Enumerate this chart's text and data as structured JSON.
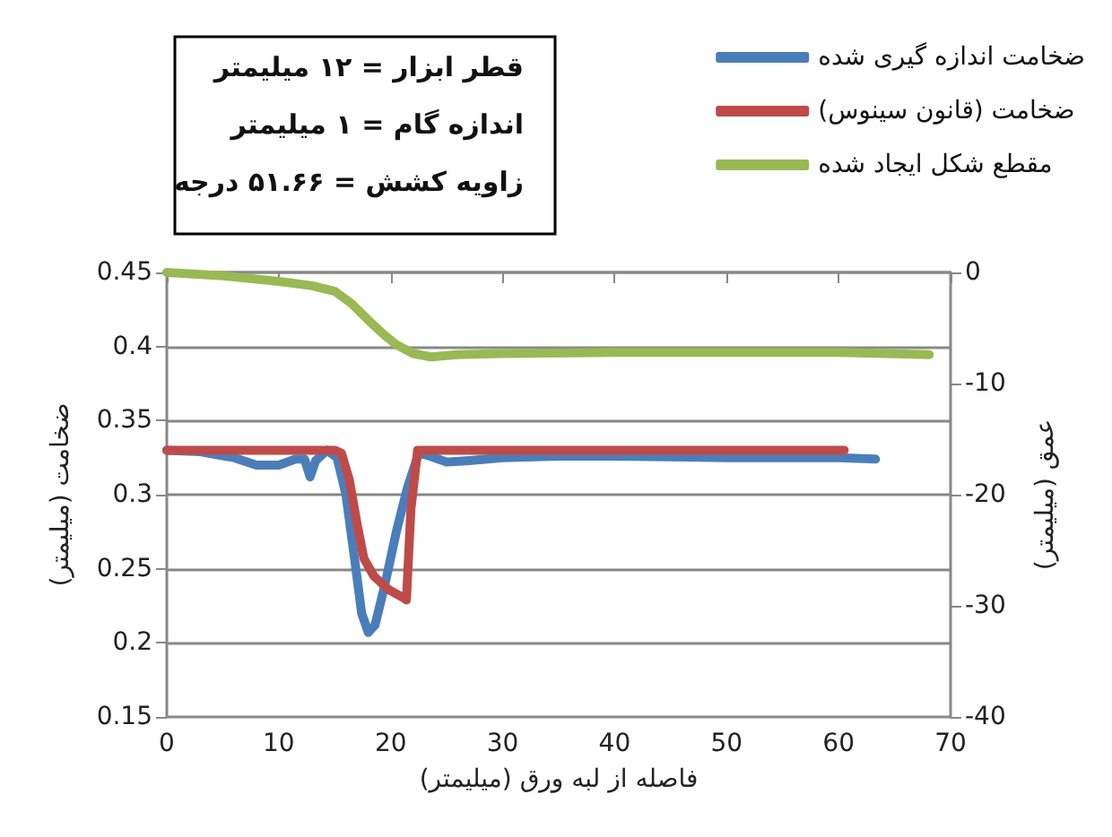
{
  "chart_data": {
    "type": "line",
    "xlabel": "فاصله از لبه ورق (میلیمتر)",
    "ylabel": "ضخامت (میلیمتر)",
    "y2label": "عمق (میلیمتر)",
    "annotations": [
      "قطر ابزار = ۱۲ میلیمتر",
      "اندازه گام = ۱ میلیمتر",
      "زاویه کشش = ۵۱.۶۶ درجه"
    ],
    "series": [
      {
        "name": "ضخامت اندازه گیری شده",
        "color": "#4a7ebb",
        "x": [
          0,
          3,
          6,
          8,
          10,
          11.5,
          12.3,
          12.8,
          13.3,
          14.3,
          15.2,
          16,
          16.8,
          17.4,
          18,
          18.6,
          19.5,
          20.5,
          21.5,
          22.5,
          23.5,
          25,
          27,
          30,
          35,
          40,
          50,
          60,
          63.3
        ],
        "values": [
          0.33,
          0.329,
          0.325,
          0.32,
          0.32,
          0.324,
          0.324,
          0.312,
          0.323,
          0.33,
          0.325,
          0.3,
          0.255,
          0.22,
          0.207,
          0.212,
          0.24,
          0.275,
          0.305,
          0.328,
          0.326,
          0.322,
          0.323,
          0.325,
          0.326,
          0.326,
          0.325,
          0.325,
          0.324
        ]
      },
      {
        "name": "ضخامت (قانون سینوس)",
        "color": "#be4b48",
        "x": [
          0,
          5,
          10,
          15,
          15.6,
          16.3,
          17,
          17.6,
          18.5,
          19.8,
          21,
          21.4,
          21.8,
          22.4,
          25,
          30,
          40,
          50,
          60.5
        ],
        "values": [
          0.33,
          0.33,
          0.33,
          0.33,
          0.328,
          0.31,
          0.28,
          0.257,
          0.245,
          0.236,
          0.231,
          0.229,
          0.29,
          0.33,
          0.33,
          0.33,
          0.33,
          0.33,
          0.33
        ]
      },
      {
        "name": "مقطع شکل ایجاد شده",
        "color": "#98b954",
        "axis": "y2",
        "x": [
          0,
          5,
          10,
          13,
          15,
          16.5,
          18,
          19.5,
          20.5,
          22,
          23.6,
          26,
          30,
          40,
          50,
          60,
          68.1
        ],
        "values": [
          0,
          -0.3,
          -0.8,
          -1.2,
          -1.7,
          -2.8,
          -4.3,
          -5.7,
          -6.5,
          -7.3,
          -7.6,
          -7.4,
          -7.3,
          -7.2,
          -7.2,
          -7.2,
          -7.4
        ]
      }
    ],
    "xlim": [
      0,
      70
    ],
    "xticks": [
      0,
      10,
      20,
      30,
      40,
      50,
      60,
      70
    ],
    "ylim": [
      0.15,
      0.45
    ],
    "yticks": [
      0.15,
      0.2,
      0.25,
      0.3,
      0.35,
      0.4,
      0.45
    ],
    "y2lim": [
      -40,
      0
    ],
    "y2ticks": [
      -40,
      -30,
      -20,
      -10,
      0
    ],
    "grid": "y",
    "legend": "top right",
    "marker": "none",
    "line_style": "solid"
  }
}
